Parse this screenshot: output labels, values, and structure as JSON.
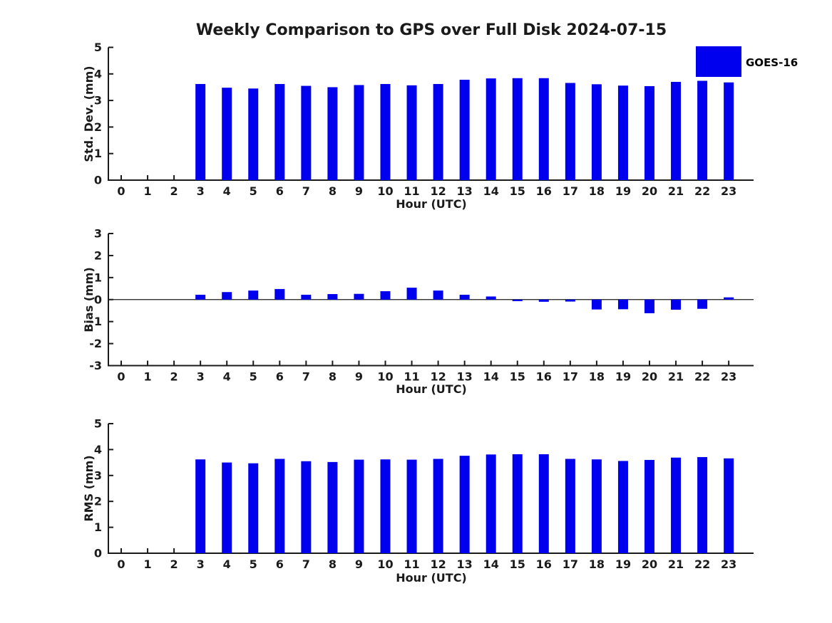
{
  "title": "Weekly Comparison to GPS over Full Disk 2024-07-15",
  "legend": {
    "label": "GOES-16",
    "color": "#0000EE"
  },
  "chart_data": [
    {
      "type": "bar",
      "name": "std-dev",
      "ylabel": "Std. Dev. (mm)",
      "xlabel": "Hour (UTC)",
      "categories": [
        0,
        1,
        2,
        3,
        4,
        5,
        6,
        7,
        8,
        9,
        10,
        11,
        12,
        13,
        14,
        15,
        16,
        17,
        18,
        19,
        20,
        21,
        22,
        23
      ],
      "series": [
        {
          "name": "GOES-16",
          "color": "#0000EE",
          "values": [
            null,
            null,
            null,
            3.62,
            3.48,
            3.45,
            3.62,
            3.55,
            3.5,
            3.58,
            3.62,
            3.57,
            3.62,
            3.78,
            3.83,
            3.84,
            3.84,
            3.66,
            3.61,
            3.56,
            3.54,
            3.7,
            3.74,
            3.68
          ]
        }
      ],
      "ylim": [
        0,
        5
      ],
      "yticks": [
        0,
        1,
        2,
        3,
        4,
        5
      ],
      "grid": false,
      "legend_position": "northeast"
    },
    {
      "type": "bar",
      "name": "bias",
      "ylabel": "Bias (mm)",
      "xlabel": "Hour (UTC)",
      "categories": [
        0,
        1,
        2,
        3,
        4,
        5,
        6,
        7,
        8,
        9,
        10,
        11,
        12,
        13,
        14,
        15,
        16,
        17,
        18,
        19,
        20,
        21,
        22,
        23
      ],
      "series": [
        {
          "name": "GOES-16",
          "color": "#0000EE",
          "values": [
            null,
            null,
            null,
            0.22,
            0.34,
            0.41,
            0.48,
            0.22,
            0.25,
            0.26,
            0.38,
            0.54,
            0.41,
            0.22,
            0.14,
            -0.07,
            -0.1,
            -0.09,
            -0.45,
            -0.44,
            -0.62,
            -0.46,
            -0.42,
            0.1
          ]
        }
      ],
      "ylim": [
        -3,
        3
      ],
      "yticks": [
        -3,
        -2,
        -1,
        0,
        1,
        2,
        3
      ],
      "grid": false,
      "zero_line": true
    },
    {
      "type": "bar",
      "name": "rms",
      "ylabel": "RMS (mm)",
      "xlabel": "Hour (UTC)",
      "categories": [
        0,
        1,
        2,
        3,
        4,
        5,
        6,
        7,
        8,
        9,
        10,
        11,
        12,
        13,
        14,
        15,
        16,
        17,
        18,
        19,
        20,
        21,
        22,
        23
      ],
      "series": [
        {
          "name": "GOES-16",
          "color": "#0000EE",
          "values": [
            null,
            null,
            null,
            3.62,
            3.5,
            3.47,
            3.64,
            3.55,
            3.52,
            3.61,
            3.62,
            3.61,
            3.64,
            3.76,
            3.81,
            3.82,
            3.82,
            3.64,
            3.62,
            3.56,
            3.6,
            3.69,
            3.71,
            3.66
          ]
        }
      ],
      "ylim": [
        0,
        5
      ],
      "yticks": [
        0,
        1,
        2,
        3,
        4,
        5
      ],
      "grid": false
    }
  ]
}
